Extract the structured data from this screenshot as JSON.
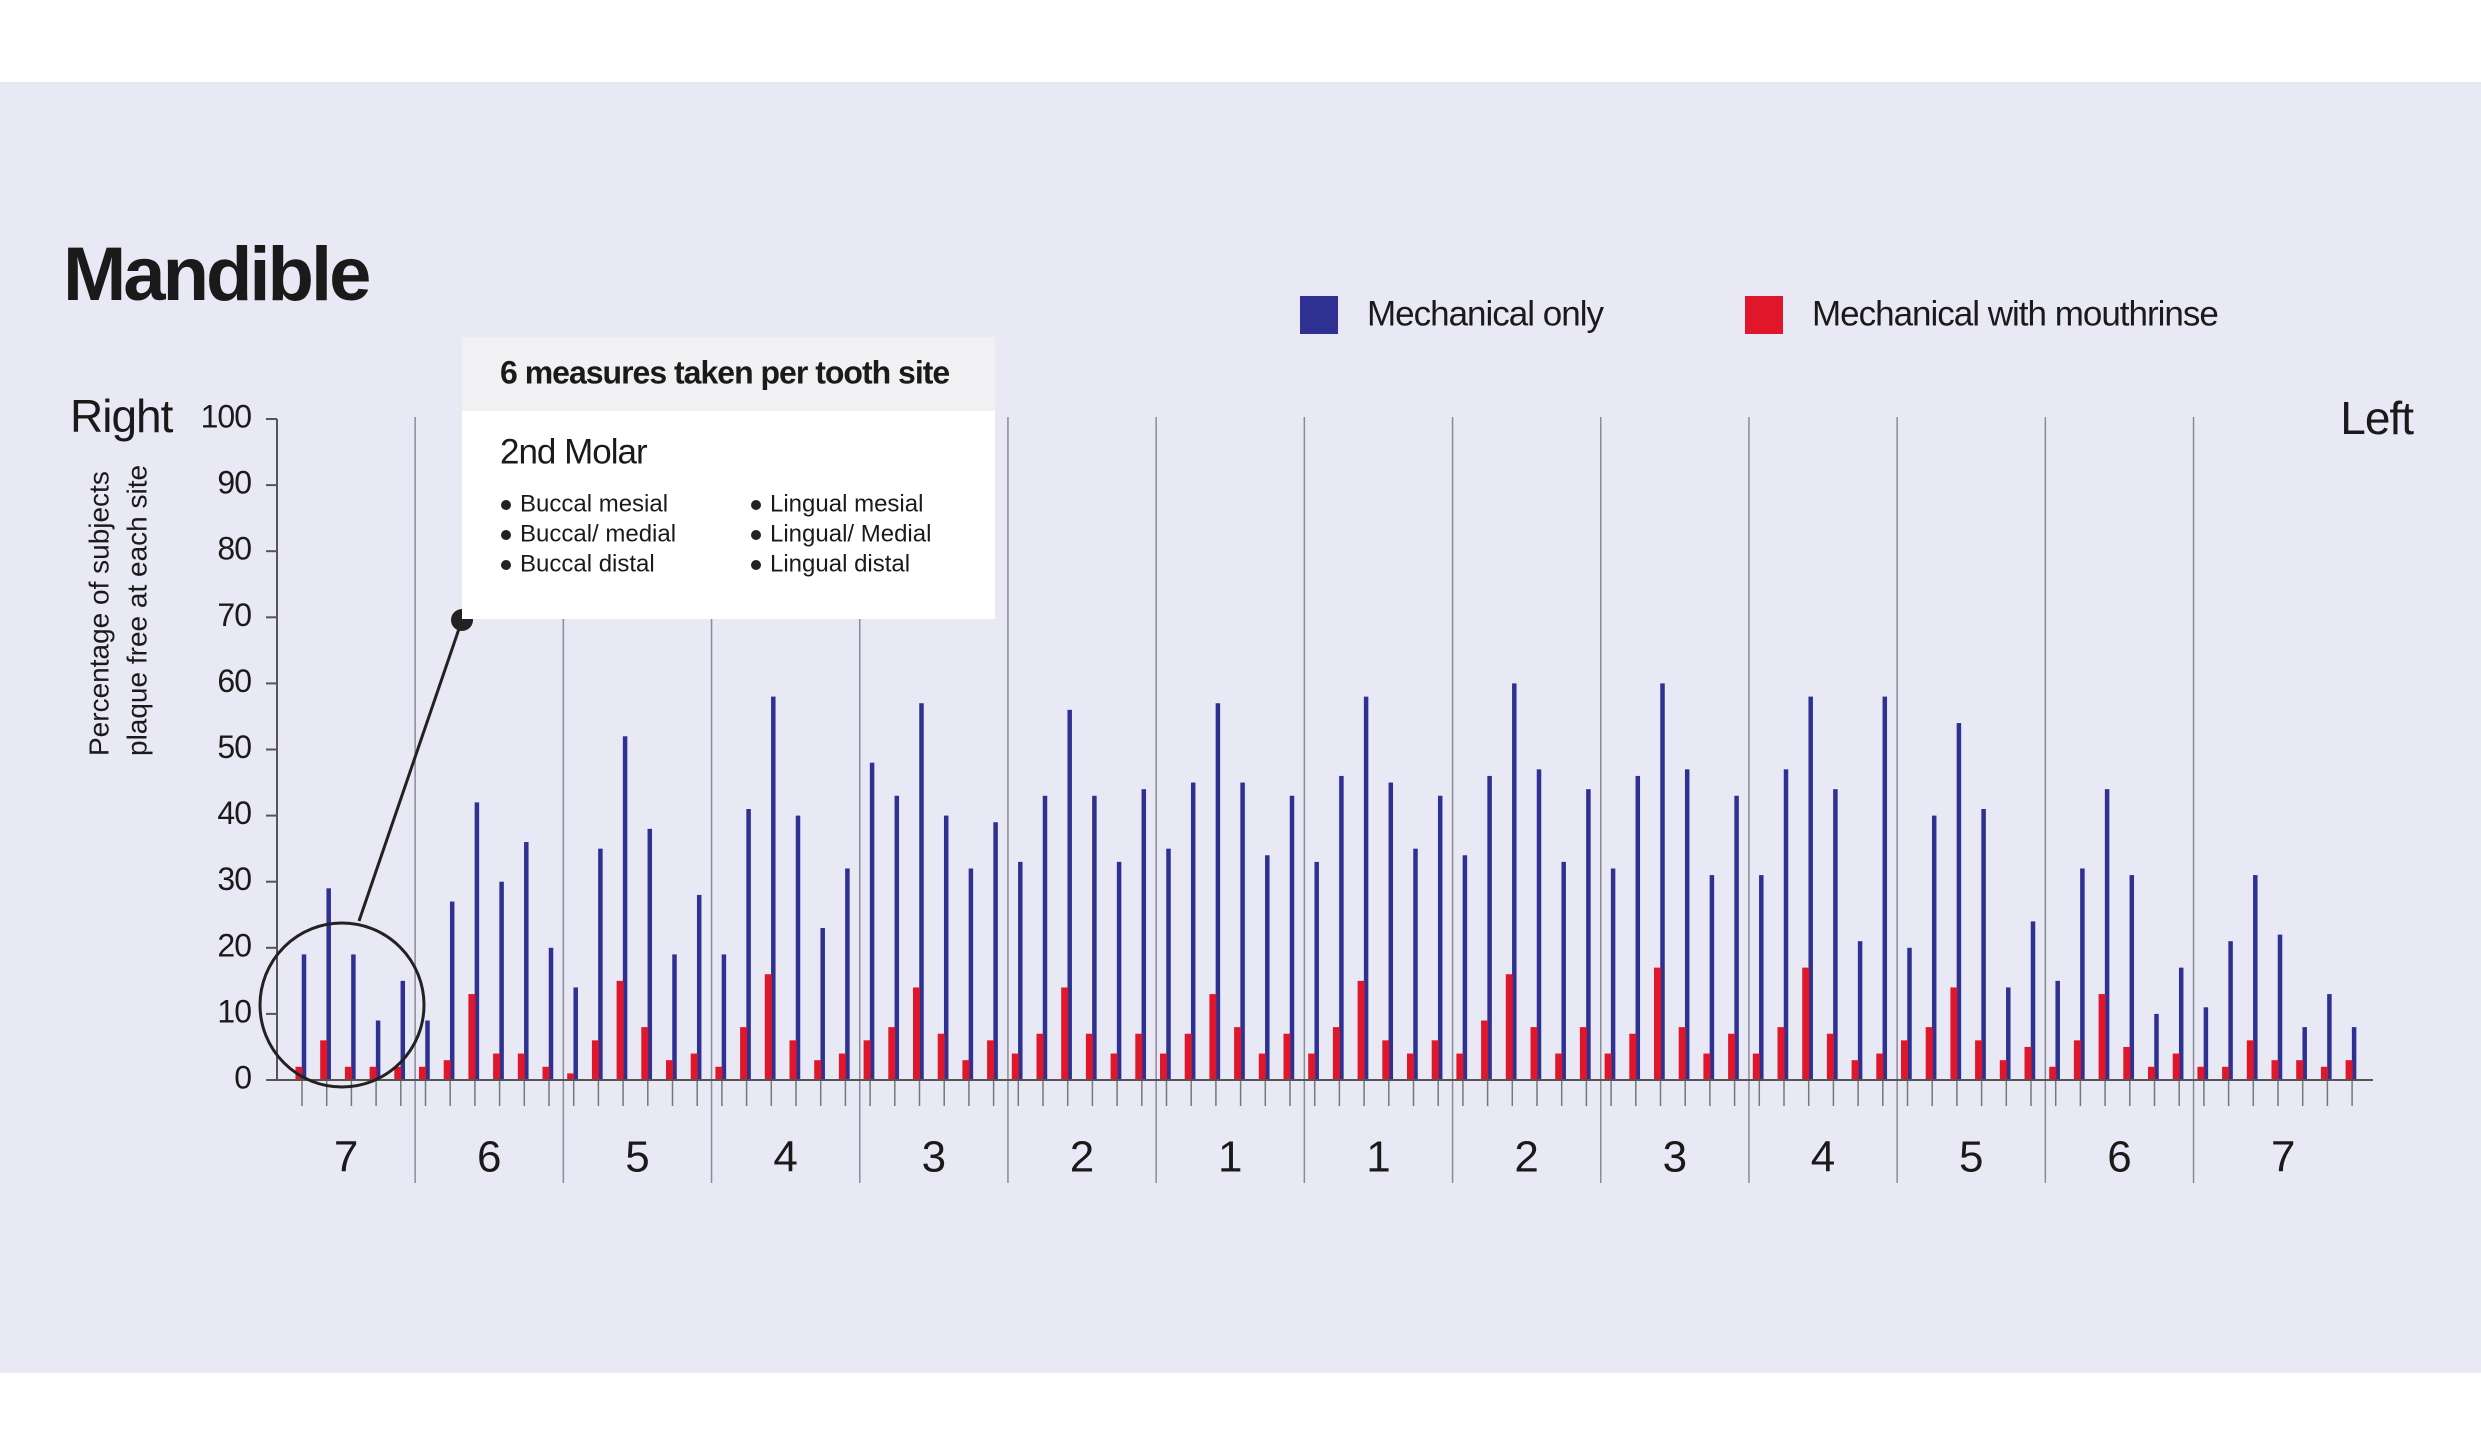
{
  "chart_data": {
    "type": "bar",
    "title": "Mandible",
    "side_left": "Right",
    "side_right": "Left",
    "y_label": [
      "Percentage of subjects",
      "plaque free at each site"
    ],
    "categories": [
      null,
      null,
      null,
      null,
      null,
      null,
      null,
      null,
      null,
      null,
      null,
      null,
      null,
      null,
      null,
      null,
      null,
      null,
      null,
      null,
      null,
      null,
      null,
      null,
      null,
      null,
      null,
      null,
      null,
      null,
      null,
      null,
      null,
      null,
      null,
      null,
      null,
      null,
      null,
      null,
      null,
      null,
      null,
      null,
      null,
      null,
      null,
      null,
      null,
      null,
      null,
      null,
      null,
      null,
      null,
      null,
      null,
      null,
      null,
      null,
      null,
      null,
      null,
      null,
      null,
      null,
      null,
      null,
      null,
      null,
      null,
      null,
      null,
      null,
      null,
      null,
      null,
      null,
      null,
      null,
      null,
      null,
      null,
      null
    ],
    "groups": [
      "7",
      "6",
      "5",
      "4",
      "3",
      "2",
      "1",
      "1",
      "2",
      "3",
      "4",
      "5",
      "6",
      "7"
    ],
    "series": [
      {
        "name": "Mechanical only",
        "color": "#2e3192",
        "values": [
          19,
          29,
          19,
          9,
          15,
          9,
          27,
          42,
          30,
          36,
          20,
          14,
          35,
          52,
          38,
          19,
          28,
          19,
          41,
          58,
          40,
          23,
          32,
          48,
          43,
          57,
          40,
          32,
          39,
          33,
          43,
          56,
          43,
          33,
          44,
          35,
          45,
          57,
          45,
          34,
          43,
          33,
          46,
          58,
          45,
          35,
          43,
          34,
          46,
          60,
          47,
          33,
          44,
          32,
          46,
          60,
          47,
          31,
          43,
          31,
          47,
          58,
          44,
          21,
          58,
          20,
          40,
          54,
          41,
          14,
          24,
          15,
          32,
          44,
          31,
          10,
          17,
          11,
          21,
          31,
          22,
          8,
          13,
          8
        ]
      },
      {
        "name": "Mechanical with mouthrinse",
        "color": "#e0162b",
        "values": [
          2,
          6,
          2,
          2,
          2,
          2,
          3,
          13,
          4,
          4,
          2,
          1,
          6,
          15,
          8,
          3,
          4,
          2,
          8,
          16,
          6,
          3,
          4,
          6,
          8,
          14,
          7,
          3,
          6,
          4,
          7,
          14,
          7,
          4,
          7,
          4,
          7,
          13,
          8,
          4,
          7,
          4,
          8,
          15,
          6,
          4,
          6,
          4,
          9,
          16,
          8,
          4,
          8,
          4,
          7,
          17,
          8,
          4,
          7,
          4,
          8,
          17,
          7,
          3,
          4,
          6,
          8,
          14,
          6,
          3,
          5,
          2,
          6,
          13,
          5,
          2,
          4,
          2,
          2,
          6,
          3,
          3,
          2,
          3
        ]
      }
    ],
    "ylim": [
      0,
      100
    ],
    "yticks": [
      0,
      10,
      20,
      30,
      40,
      50,
      60,
      70,
      80,
      90,
      100
    ],
    "callout": {
      "header": "6 measures taken per tooth site",
      "title": "2nd Molar",
      "column_1": [
        "Buccal mesial",
        "Buccal/ medial",
        "Buccal distal"
      ],
      "column_2": [
        "Lingual mesial",
        "Lingual/ Medial",
        "Lingual distal"
      ]
    }
  }
}
